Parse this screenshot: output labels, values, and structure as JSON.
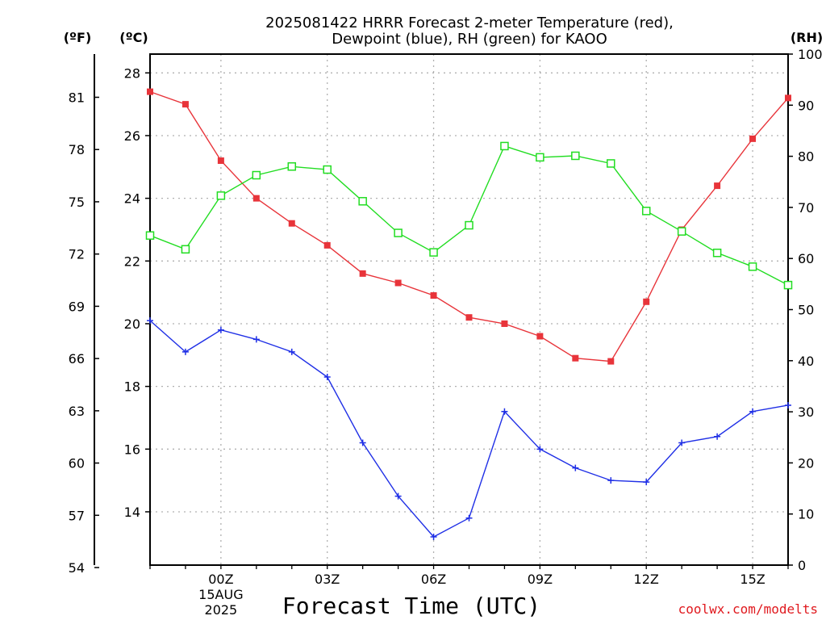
{
  "chart_data": {
    "type": "line",
    "title_line1": "2025081422 HRRR Forecast 2-meter Temperature (red),",
    "title_line2": "Dewpoint (blue), RH (green) for KAOO",
    "xlabel": "Forecast Time (UTC)",
    "credit": "coolwx.com/modelts",
    "units": {
      "fahrenheit": "(ºF)",
      "celsius": "(ºC)",
      "rh": "(RH)"
    },
    "x_hours": [
      -2,
      -1,
      0,
      1,
      2,
      3,
      4,
      5,
      6,
      7,
      8,
      9,
      10,
      11,
      12,
      13,
      14,
      15,
      16
    ],
    "x_ticks": [
      {
        "hour": 0,
        "label": "00Z",
        "date_line1": "15AUG",
        "date_line2": "2025"
      },
      {
        "hour": 3,
        "label": "03Z"
      },
      {
        "hour": 6,
        "label": "06Z"
      },
      {
        "hour": 9,
        "label": "09Z"
      },
      {
        "hour": 12,
        "label": "12Z"
      },
      {
        "hour": 15,
        "label": "15Z"
      }
    ],
    "celsius_range": [
      12.3,
      28.6
    ],
    "celsius_ticks": [
      "14",
      "16",
      "18",
      "20",
      "22",
      "24",
      "26",
      "28"
    ],
    "fahrenheit_ticks": [
      "54",
      "57",
      "60",
      "63",
      "66",
      "69",
      "72",
      "75",
      "78",
      "81"
    ],
    "rh_range": [
      0,
      100
    ],
    "rh_ticks": [
      "0",
      "10",
      "20",
      "30",
      "40",
      "50",
      "60",
      "70",
      "80",
      "90",
      "100"
    ],
    "grid": true,
    "series": [
      {
        "name": "Temperature",
        "axis": "celsius",
        "color": "#e8343a",
        "marker": "filled-square",
        "values": [
          27.4,
          27.0,
          25.2,
          24.0,
          23.2,
          22.5,
          21.6,
          21.3,
          20.9,
          20.2,
          20.0,
          19.6,
          18.9,
          18.8,
          20.7,
          23.0,
          24.4,
          25.9,
          27.2
        ]
      },
      {
        "name": "Dewpoint",
        "axis": "celsius",
        "color": "#1f2fe6",
        "marker": "plus",
        "values": [
          20.1,
          19.1,
          19.8,
          19.5,
          19.1,
          18.3,
          16.2,
          14.5,
          13.2,
          13.8,
          17.2,
          16.0,
          15.4,
          15.0,
          14.95,
          16.2,
          16.4,
          17.2,
          17.4
        ]
      },
      {
        "name": "RH",
        "axis": "rh",
        "color": "#22dd22",
        "marker": "open-square",
        "values": [
          64.5,
          61.8,
          72.3,
          76.3,
          78.0,
          77.4,
          71.2,
          65.0,
          61.2,
          66.5,
          82.0,
          79.8,
          80.1,
          78.6,
          69.3,
          65.3,
          61.1,
          58.4,
          54.8
        ]
      }
    ]
  }
}
